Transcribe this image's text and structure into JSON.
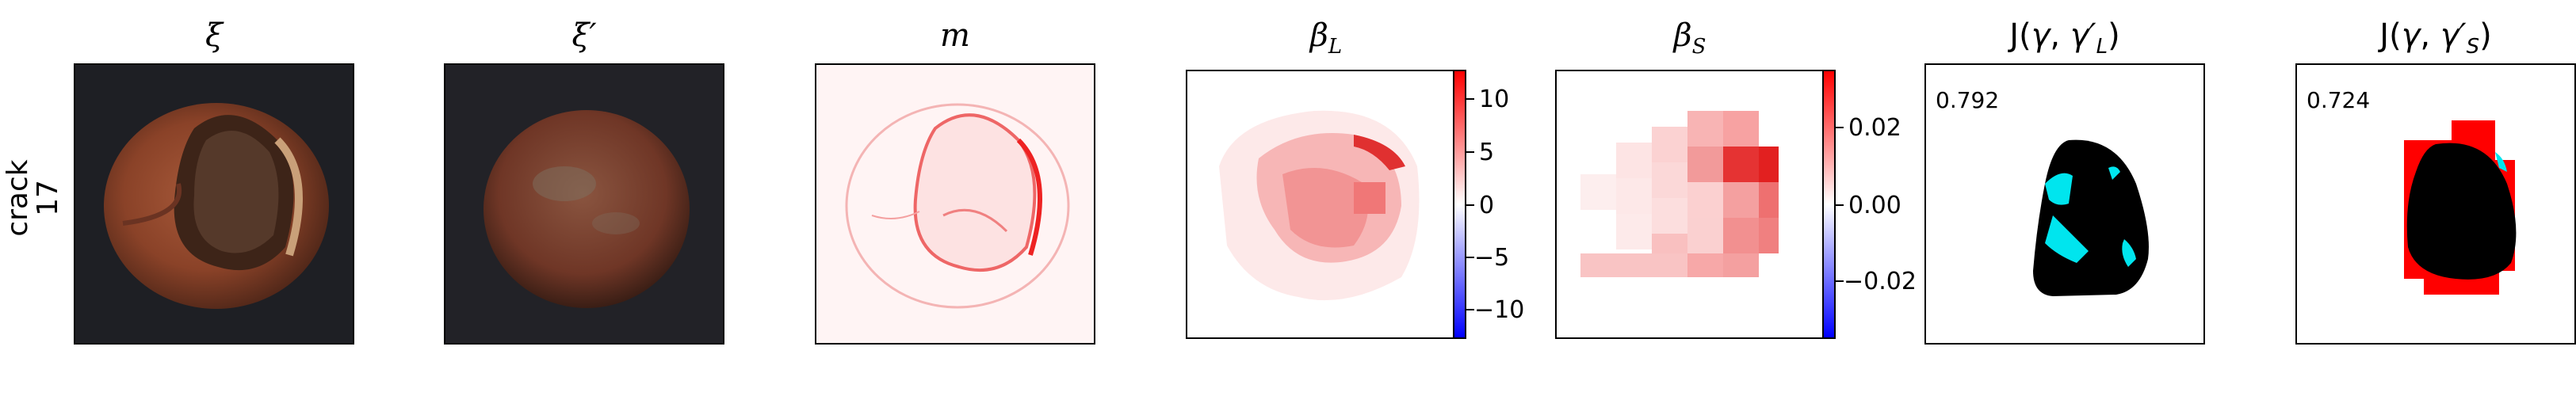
{
  "row_label": {
    "line1": "crack",
    "line2": "17"
  },
  "panels": {
    "xi": {
      "title": "ξ",
      "content": "photo of cracked hazelnut"
    },
    "xi_prime": {
      "title": "ξ′",
      "content": "reconstructed hazelnut image"
    },
    "m": {
      "title": "m",
      "content": "red difference map"
    },
    "beta_L": {
      "title_base": "β",
      "title_sub": "L",
      "colorbar": {
        "ticks": [
          "10",
          "5",
          "0",
          "−5",
          "−10"
        ],
        "min": -13,
        "max": 13,
        "colors": {
          "high": "#ff0000",
          "mid": "#ffffff",
          "low": "#0000ff"
        }
      }
    },
    "beta_S": {
      "title_base": "β",
      "title_sub": "S",
      "colorbar": {
        "ticks": [
          "0.02",
          "0.00",
          "−0.02"
        ],
        "min": -0.035,
        "max": 0.035,
        "colors": {
          "high": "#ff0000",
          "mid": "#ffffff",
          "low": "#0000ff"
        }
      }
    },
    "J_L": {
      "title_prefix": "J(",
      "title_gamma": "γ",
      "title_sep": ", ",
      "title_gp": "γ′",
      "title_sub": "L",
      "title_suffix": ")",
      "score": "0.792",
      "colors": {
        "mask": "#000000",
        "overlay": "#00e5ee"
      }
    },
    "J_S": {
      "title_prefix": "J(",
      "title_gamma": "γ",
      "title_sep": ", ",
      "title_gp": "γ′",
      "title_sub": "S",
      "title_suffix": ")",
      "score": "0.724",
      "colors": {
        "mask": "#000000",
        "overlay": "#ff0000"
      }
    }
  }
}
